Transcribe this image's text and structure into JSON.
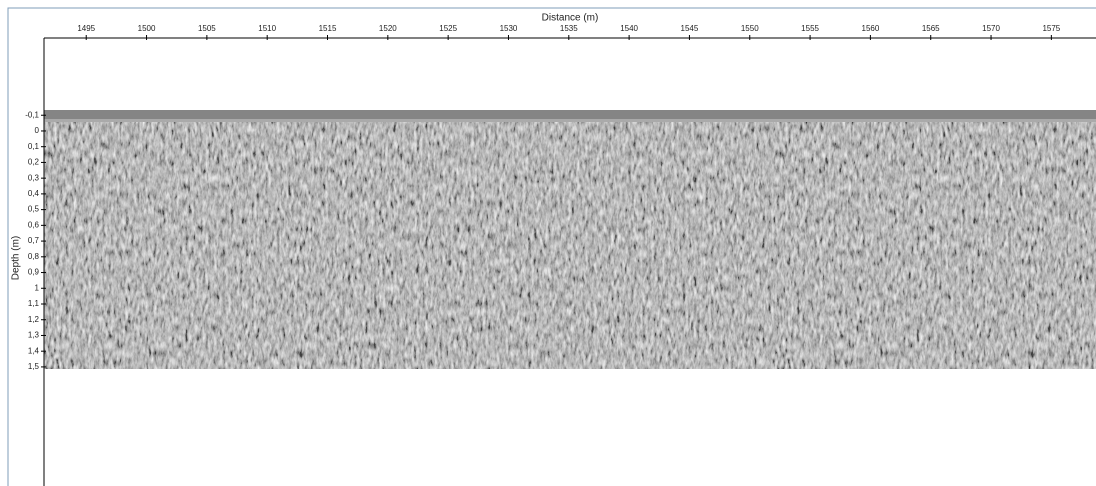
{
  "chart_data": {
    "type": "radargram",
    "xlabel": "Distance (m)",
    "ylabel": "Depth (m)",
    "xlim": [
      1491.5,
      1578.7
    ],
    "xticks": [
      1495,
      1500,
      1505,
      1510,
      1515,
      1520,
      1525,
      1530,
      1535,
      1540,
      1545,
      1550,
      1555,
      1560,
      1565,
      1570,
      1575
    ],
    "ylim": [
      -0.591,
      2.257
    ],
    "yticks": [
      {
        "value": -0.1,
        "label": "-0,1"
      },
      0,
      {
        "value": 0.1,
        "label": "0,1"
      },
      {
        "value": 0.2,
        "label": "0,2"
      },
      {
        "value": 0.3,
        "label": "0,3"
      },
      {
        "value": 0.4,
        "label": "0,4"
      },
      {
        "value": 0.5,
        "label": "0,5"
      },
      {
        "value": 0.6,
        "label": "0,6"
      },
      {
        "value": 0.7,
        "label": "0,7"
      },
      {
        "value": 0.8,
        "label": "0,8"
      },
      {
        "value": 0.9,
        "label": "0,9"
      },
      1,
      {
        "value": 1.1,
        "label": "1,1"
      },
      {
        "value": 1.2,
        "label": "1,2"
      },
      {
        "value": 1.3,
        "label": "1,3"
      },
      {
        "value": 1.4,
        "label": "1,4"
      },
      {
        "value": 1.5,
        "label": "1,5"
      }
    ],
    "y_inverted": true
  }
}
